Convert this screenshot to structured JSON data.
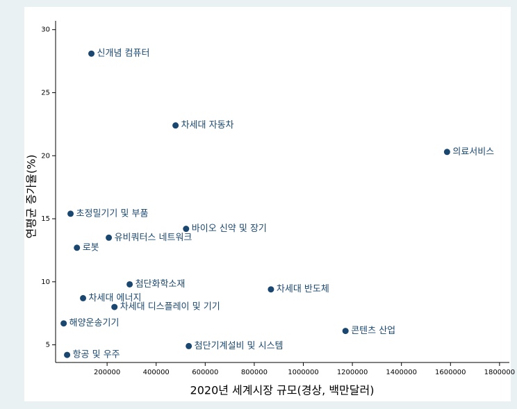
{
  "chart_data": {
    "type": "scatter",
    "x_label": "2020년 세계시장 규모(경상, 백만달러)",
    "y_label": "연평균 증가율(%)",
    "color": "#1a476f",
    "xlim": [
      -10000,
      1840000
    ],
    "ylim": [
      3.6,
      30.7
    ],
    "xticks": [
      200000,
      400000,
      600000,
      800000,
      1000000,
      1200000,
      1400000,
      1600000,
      1800000
    ],
    "yticks": [
      5,
      10,
      15,
      20,
      25,
      30
    ],
    "labels": [
      "신개념 컴퓨터",
      "차세대 자동차",
      "의료서비스",
      "초정밀기기 및 부품",
      "바이오 신약 및 장기",
      "유비쿼터스 네트워크",
      "로봇",
      "첨단화학소재",
      "차세대 반도체",
      "차세대 에너지",
      "차세대 디스플레이 및 기기",
      "해양운송기기",
      "콘텐츠 산업",
      "첨단기계설비 및 시스템",
      "항공 및 우주"
    ],
    "x": [
      136000,
      479000,
      1586000,
      51000,
      522000,
      207000,
      77000,
      292000,
      868000,
      102000,
      230000,
      23000,
      1172000,
      533000,
      37000
    ],
    "y": [
      28.1,
      22.4,
      20.3,
      15.4,
      14.2,
      13.5,
      12.7,
      9.8,
      9.4,
      8.7,
      8.0,
      6.7,
      6.1,
      4.9,
      4.2
    ]
  }
}
